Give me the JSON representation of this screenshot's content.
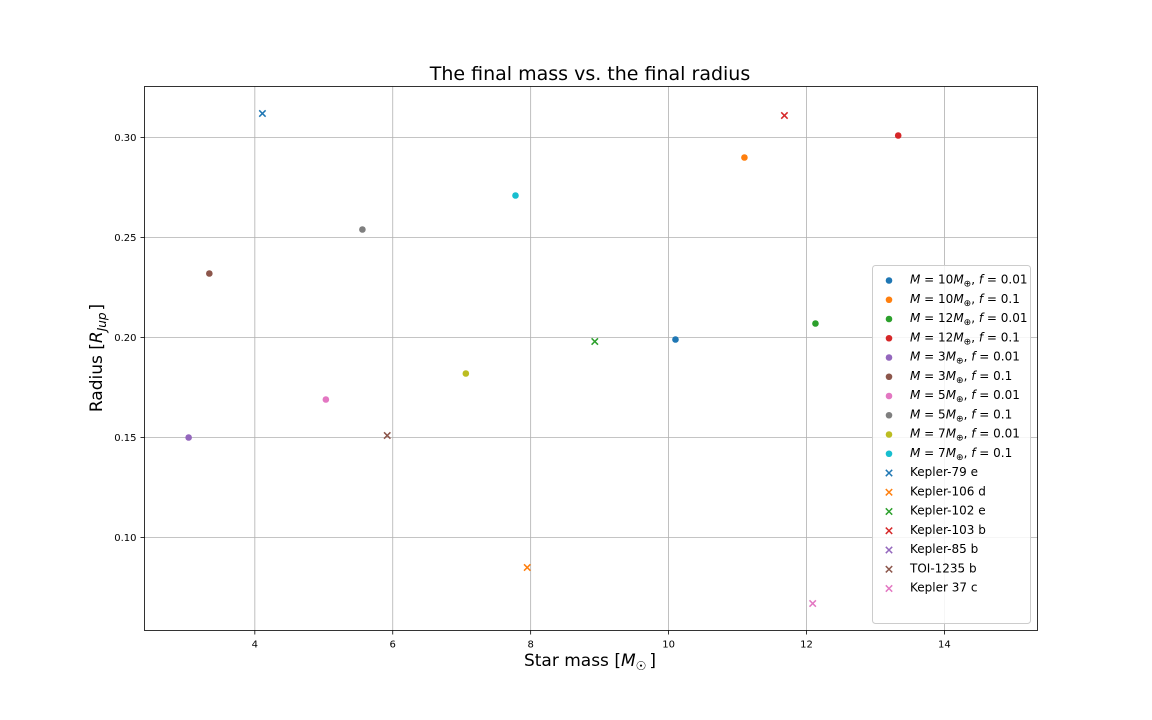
{
  "chart_data": {
    "type": "scatter",
    "title": "The final mass vs. the final radius",
    "xlabel": "Star mass [M☉]",
    "xlabel_parts": {
      "text": "Star mass [",
      "symbol": "M",
      "sub": "☉",
      "close": "]"
    },
    "ylabel": "Radius [R_Jup]",
    "ylabel_parts": {
      "text": "Radius [",
      "symbol": "R",
      "sub": "Jup",
      "close": "]"
    },
    "xlim": [
      2.4,
      15.35
    ],
    "ylim": [
      0.0535,
      0.3255
    ],
    "xticks": [
      4,
      6,
      8,
      10,
      12,
      14
    ],
    "yticks": [
      0.1,
      0.15,
      0.2,
      0.25,
      0.3
    ],
    "ytick_labels": [
      "0.10",
      "0.15",
      "0.20",
      "0.25",
      "0.30"
    ],
    "grid": true,
    "legend_position": "lower right",
    "series": [
      {
        "name": "M = 10M⊕, f = 0.01",
        "label": {
          "m": "10",
          "f": "0.01"
        },
        "marker": "circle",
        "color": "#1f77b4",
        "points": [
          [
            10.1,
            0.199
          ]
        ]
      },
      {
        "name": "M = 10M⊕, f = 0.1",
        "label": {
          "m": "10",
          "f": "0.1"
        },
        "marker": "circle",
        "color": "#ff7f0e",
        "points": [
          [
            11.1,
            0.29
          ]
        ]
      },
      {
        "name": "M = 12M⊕, f = 0.01",
        "label": {
          "m": "12",
          "f": "0.01"
        },
        "marker": "circle",
        "color": "#2ca02c",
        "points": [
          [
            12.13,
            0.207
          ]
        ]
      },
      {
        "name": "M = 12M⊕, f = 0.1",
        "label": {
          "m": "12",
          "f": "0.1"
        },
        "marker": "circle",
        "color": "#d62728",
        "points": [
          [
            13.33,
            0.301
          ]
        ]
      },
      {
        "name": "M = 3M⊕, f = 0.01",
        "label": {
          "m": "3",
          "f": "0.01"
        },
        "marker": "circle",
        "color": "#9467bd",
        "points": [
          [
            3.04,
            0.15
          ]
        ]
      },
      {
        "name": "M = 3M⊕, f = 0.1",
        "label": {
          "m": "3",
          "f": "0.1"
        },
        "marker": "circle",
        "color": "#8c564b",
        "points": [
          [
            3.34,
            0.232
          ]
        ]
      },
      {
        "name": "M = 5M⊕, f = 0.01",
        "label": {
          "m": "5",
          "f": "0.01"
        },
        "marker": "circle",
        "color": "#e377c2",
        "points": [
          [
            5.03,
            0.169
          ]
        ]
      },
      {
        "name": "M = 5M⊕, f = 0.1",
        "label": {
          "m": "5",
          "f": "0.1"
        },
        "marker": "circle",
        "color": "#7f7f7f",
        "points": [
          [
            5.56,
            0.254
          ]
        ]
      },
      {
        "name": "M = 7M⊕, f = 0.01",
        "label": {
          "m": "7",
          "f": "0.01"
        },
        "marker": "circle",
        "color": "#bcbd22",
        "points": [
          [
            7.06,
            0.182
          ]
        ]
      },
      {
        "name": "M = 7M⊕, f = 0.1",
        "label": {
          "m": "7",
          "f": "0.1"
        },
        "marker": "circle",
        "color": "#17becf",
        "points": [
          [
            7.78,
            0.271
          ]
        ]
      },
      {
        "name": "Kepler-79 e",
        "marker": "x",
        "color": "#1f77b4",
        "points": [
          [
            4.11,
            0.312
          ]
        ]
      },
      {
        "name": "Kepler-106 d",
        "marker": "x",
        "color": "#ff7f0e",
        "points": [
          [
            7.95,
            0.085
          ]
        ]
      },
      {
        "name": "Kepler-102 e",
        "marker": "x",
        "color": "#2ca02c",
        "points": [
          [
            8.93,
            0.198
          ]
        ]
      },
      {
        "name": "Kepler-103 b",
        "marker": "x",
        "color": "#d62728",
        "points": [
          [
            11.68,
            0.311
          ]
        ]
      },
      {
        "name": "Kepler-85 b",
        "marker": "x",
        "color": "#9467bd",
        "points": []
      },
      {
        "name": "TOI-1235 b",
        "marker": "x",
        "color": "#8c564b",
        "points": [
          [
            5.92,
            0.151
          ]
        ]
      },
      {
        "name": "Kepler 37 c",
        "marker": "x",
        "color": "#e377c2",
        "points": [
          [
            12.09,
            0.067
          ]
        ]
      }
    ]
  }
}
